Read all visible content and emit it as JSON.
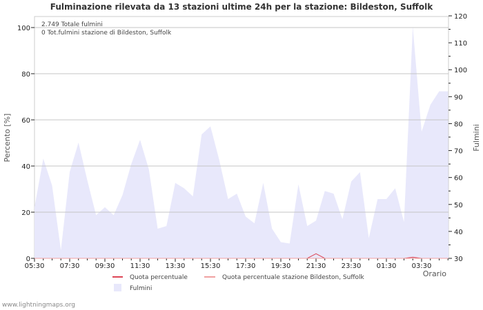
{
  "title": "Fulminazione rilevata da 13 stazioni ultime 24h per la stazione: Bildeston, Suffolk",
  "annotations": {
    "total": "2.749 Totale fulmini",
    "station_total": "0 Tot.fulmini stazione di Bildeston, Suffolk"
  },
  "axes": {
    "left_label": "Percento   [%]",
    "right_label": "Fulmini",
    "x_label": "Orario",
    "left_ticks": [
      "0",
      "20",
      "40",
      "60",
      "80",
      "100"
    ],
    "right_ticks": [
      "30",
      "40",
      "50",
      "60",
      "70",
      "80",
      "90",
      "100",
      "110",
      "120"
    ],
    "x_ticks": [
      "05:30",
      "07:30",
      "09:30",
      "11:30",
      "13:30",
      "15:30",
      "17:30",
      "19:30",
      "21:30",
      "23:30",
      "01:30",
      "03:30"
    ]
  },
  "legend": {
    "items": [
      {
        "label": "Quota percentuale",
        "color": "#dd4455"
      },
      {
        "label": "Quota percentuale stazione Bildeston, Suffolk",
        "color": "#f0a0a0"
      },
      {
        "label": "Fulmini",
        "color": "#e8e8fb"
      }
    ]
  },
  "footer": "www.lightningmaps.org",
  "chart_data": {
    "type": "area",
    "title": "Fulminazione rilevata da 13 stazioni ultime 24h per la stazione: Bildeston, Suffolk",
    "xlabel": "Orario",
    "ylabel": "Percento [%]",
    "y2label": "Fulmini",
    "ylim": [
      0,
      100
    ],
    "y2lim": [
      30,
      120
    ],
    "grid": true,
    "x": [
      "05:30",
      "06:00",
      "06:30",
      "07:00",
      "07:30",
      "08:00",
      "08:30",
      "09:00",
      "09:30",
      "10:00",
      "10:30",
      "11:00",
      "11:30",
      "12:00",
      "12:30",
      "13:00",
      "13:30",
      "14:00",
      "14:30",
      "15:00",
      "15:30",
      "16:00",
      "16:30",
      "17:00",
      "17:30",
      "18:00",
      "18:30",
      "19:00",
      "19:30",
      "20:00",
      "20:30",
      "21:00",
      "21:30",
      "22:00",
      "22:30",
      "23:00",
      "23:30",
      "00:00",
      "00:30",
      "01:00",
      "01:30",
      "02:00",
      "02:30",
      "03:00",
      "03:30",
      "04:00",
      "04:30",
      "05:00"
    ],
    "series": [
      {
        "name": "Fulmini",
        "axis": "right",
        "color": "#e8e8fb",
        "values": [
          49,
          67,
          57,
          33,
          62,
          73,
          59,
          46,
          49,
          46,
          53.5,
          65,
          74,
          63,
          41,
          42,
          58,
          56,
          53,
          76,
          79,
          66.5,
          52,
          54,
          45.5,
          43,
          58,
          41,
          36,
          35.5,
          57.5,
          42,
          44,
          55,
          54,
          44.5,
          58.5,
          62,
          37.5,
          52,
          52,
          56,
          43.5,
          116,
          77,
          87,
          92,
          92
        ]
      },
      {
        "name": "Quota percentuale",
        "axis": "left",
        "color": "#dd4455",
        "values": [
          0,
          0,
          0,
          0,
          0,
          0,
          0,
          0,
          0,
          0,
          0,
          0,
          0,
          0,
          0,
          0,
          0,
          0,
          0,
          0,
          0,
          0,
          0,
          0,
          0,
          0,
          0,
          0,
          0,
          0,
          0,
          0,
          2,
          0,
          0,
          0,
          0,
          0,
          0,
          0,
          0,
          0,
          0,
          0.5,
          0,
          0,
          0,
          0
        ]
      },
      {
        "name": "Quota percentuale stazione Bildeston, Suffolk",
        "axis": "left",
        "color": "#f0a0a0",
        "values": [
          0,
          0,
          0,
          0,
          0,
          0,
          0,
          0,
          0,
          0,
          0,
          0,
          0,
          0,
          0,
          0,
          0,
          0,
          0,
          0,
          0,
          0,
          0,
          0,
          0,
          0,
          0,
          0,
          0,
          0,
          0,
          0,
          0,
          0,
          0,
          0,
          0,
          0,
          0,
          0,
          0,
          0,
          0,
          0,
          0,
          0,
          0,
          0
        ]
      }
    ]
  }
}
